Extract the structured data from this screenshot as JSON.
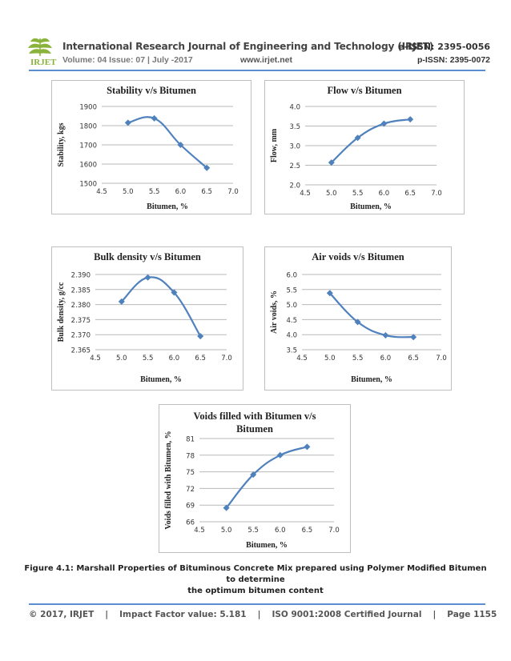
{
  "header": {
    "logo_text": "IRJET",
    "journal_title": "International Research Journal of Engineering and Technology (IRJET)",
    "e_issn": "e-ISSN: 2395-0056",
    "volume": "Volume: 04 Issue: 07 | July -2017",
    "website": "www.irjet.net",
    "p_issn": "p-ISSN: 2395-0072"
  },
  "chart_data": [
    {
      "type": "line",
      "title": "Stability v/s Bitumen",
      "xlabel": "Bitumen, %",
      "ylabel": "Stability, kgs",
      "x": [
        5.0,
        5.5,
        6.0,
        6.5
      ],
      "values": [
        1815,
        1838,
        1700,
        1580
      ],
      "xlim": [
        4.5,
        7.0
      ],
      "ylim": [
        1500,
        1900
      ],
      "xticks": [
        "4.5",
        "5.0",
        "5.5",
        "6.0",
        "6.5",
        "7.0"
      ],
      "yticks": [
        "1500",
        "1600",
        "1700",
        "1800",
        "1900"
      ]
    },
    {
      "type": "line",
      "title": "Flow v/s Bitumen",
      "xlabel": "Bitumen, %",
      "ylabel": "Flow, mm",
      "x": [
        5.0,
        5.5,
        6.0,
        6.5
      ],
      "values": [
        2.57,
        3.2,
        3.56,
        3.67
      ],
      "xlim": [
        4.5,
        7.0
      ],
      "ylim": [
        2.0,
        4.0
      ],
      "xticks": [
        "4.5",
        "5.0",
        "5.5",
        "6.0",
        "6.5",
        "7.0"
      ],
      "yticks": [
        "2.0",
        "2.5",
        "3.0",
        "3.5",
        "4.0"
      ]
    },
    {
      "type": "line",
      "title": "Bulk density v/s Bitumen",
      "xlabel": "Bitumen, %",
      "ylabel": "Bulk density, g/cc",
      "x": [
        5.0,
        5.5,
        6.0,
        6.5
      ],
      "values": [
        2.381,
        2.389,
        2.384,
        2.3695
      ],
      "xlim": [
        4.5,
        7.0
      ],
      "ylim": [
        2.365,
        2.39
      ],
      "xticks": [
        "4.5",
        "5.0",
        "5.5",
        "6.0",
        "6.5",
        "7.0"
      ],
      "yticks": [
        "2.365",
        "2.370",
        "2.375",
        "2.380",
        "2.385",
        "2.390"
      ]
    },
    {
      "type": "line",
      "title": "Air voids v/s Bitumen",
      "xlabel": "Bitumen, %",
      "ylabel": "Air voids, %",
      "x": [
        5.0,
        5.5,
        6.0,
        6.5
      ],
      "values": [
        5.38,
        4.42,
        3.98,
        3.92
      ],
      "xlim": [
        4.5,
        7.0
      ],
      "ylim": [
        3.5,
        6.0
      ],
      "xticks": [
        "4.5",
        "5.0",
        "5.5",
        "6.0",
        "6.5",
        "7.0"
      ],
      "yticks": [
        "3.5",
        "4.0",
        "4.5",
        "5.0",
        "5.5",
        "6.0"
      ]
    },
    {
      "type": "line",
      "title": [
        "Voids filled with Bitumen v/s",
        "Bitumen"
      ],
      "xlabel": "Bitumen, %",
      "ylabel": "Voids filled with Bitumen, %",
      "x": [
        5.0,
        5.5,
        6.0,
        6.5
      ],
      "values": [
        68.5,
        74.5,
        78.0,
        79.5
      ],
      "xlim": [
        4.5,
        7.0
      ],
      "ylim": [
        66,
        81
      ],
      "xticks": [
        "4.5",
        "5.0",
        "5.5",
        "6.0",
        "6.5",
        "7.0"
      ],
      "yticks": [
        "66",
        "69",
        "72",
        "75",
        "78",
        "81"
      ]
    }
  ],
  "caption": {
    "line1": "Figure 4.1: Marshall Properties of Bituminous Concrete Mix prepared using Polymer Modified Bitumen to determine",
    "line2": "the optimum bitumen content"
  },
  "footer": {
    "copyright": "© 2017, IRJET",
    "impact": "Impact Factor value: 5.181",
    "iso": "ISO 9001:2008 Certified Journal",
    "page": "Page 1155",
    "separator": "|"
  },
  "colors": {
    "series": "#4f81bd",
    "grid": "#b9b9b9",
    "rule": "#5b8ed0"
  }
}
